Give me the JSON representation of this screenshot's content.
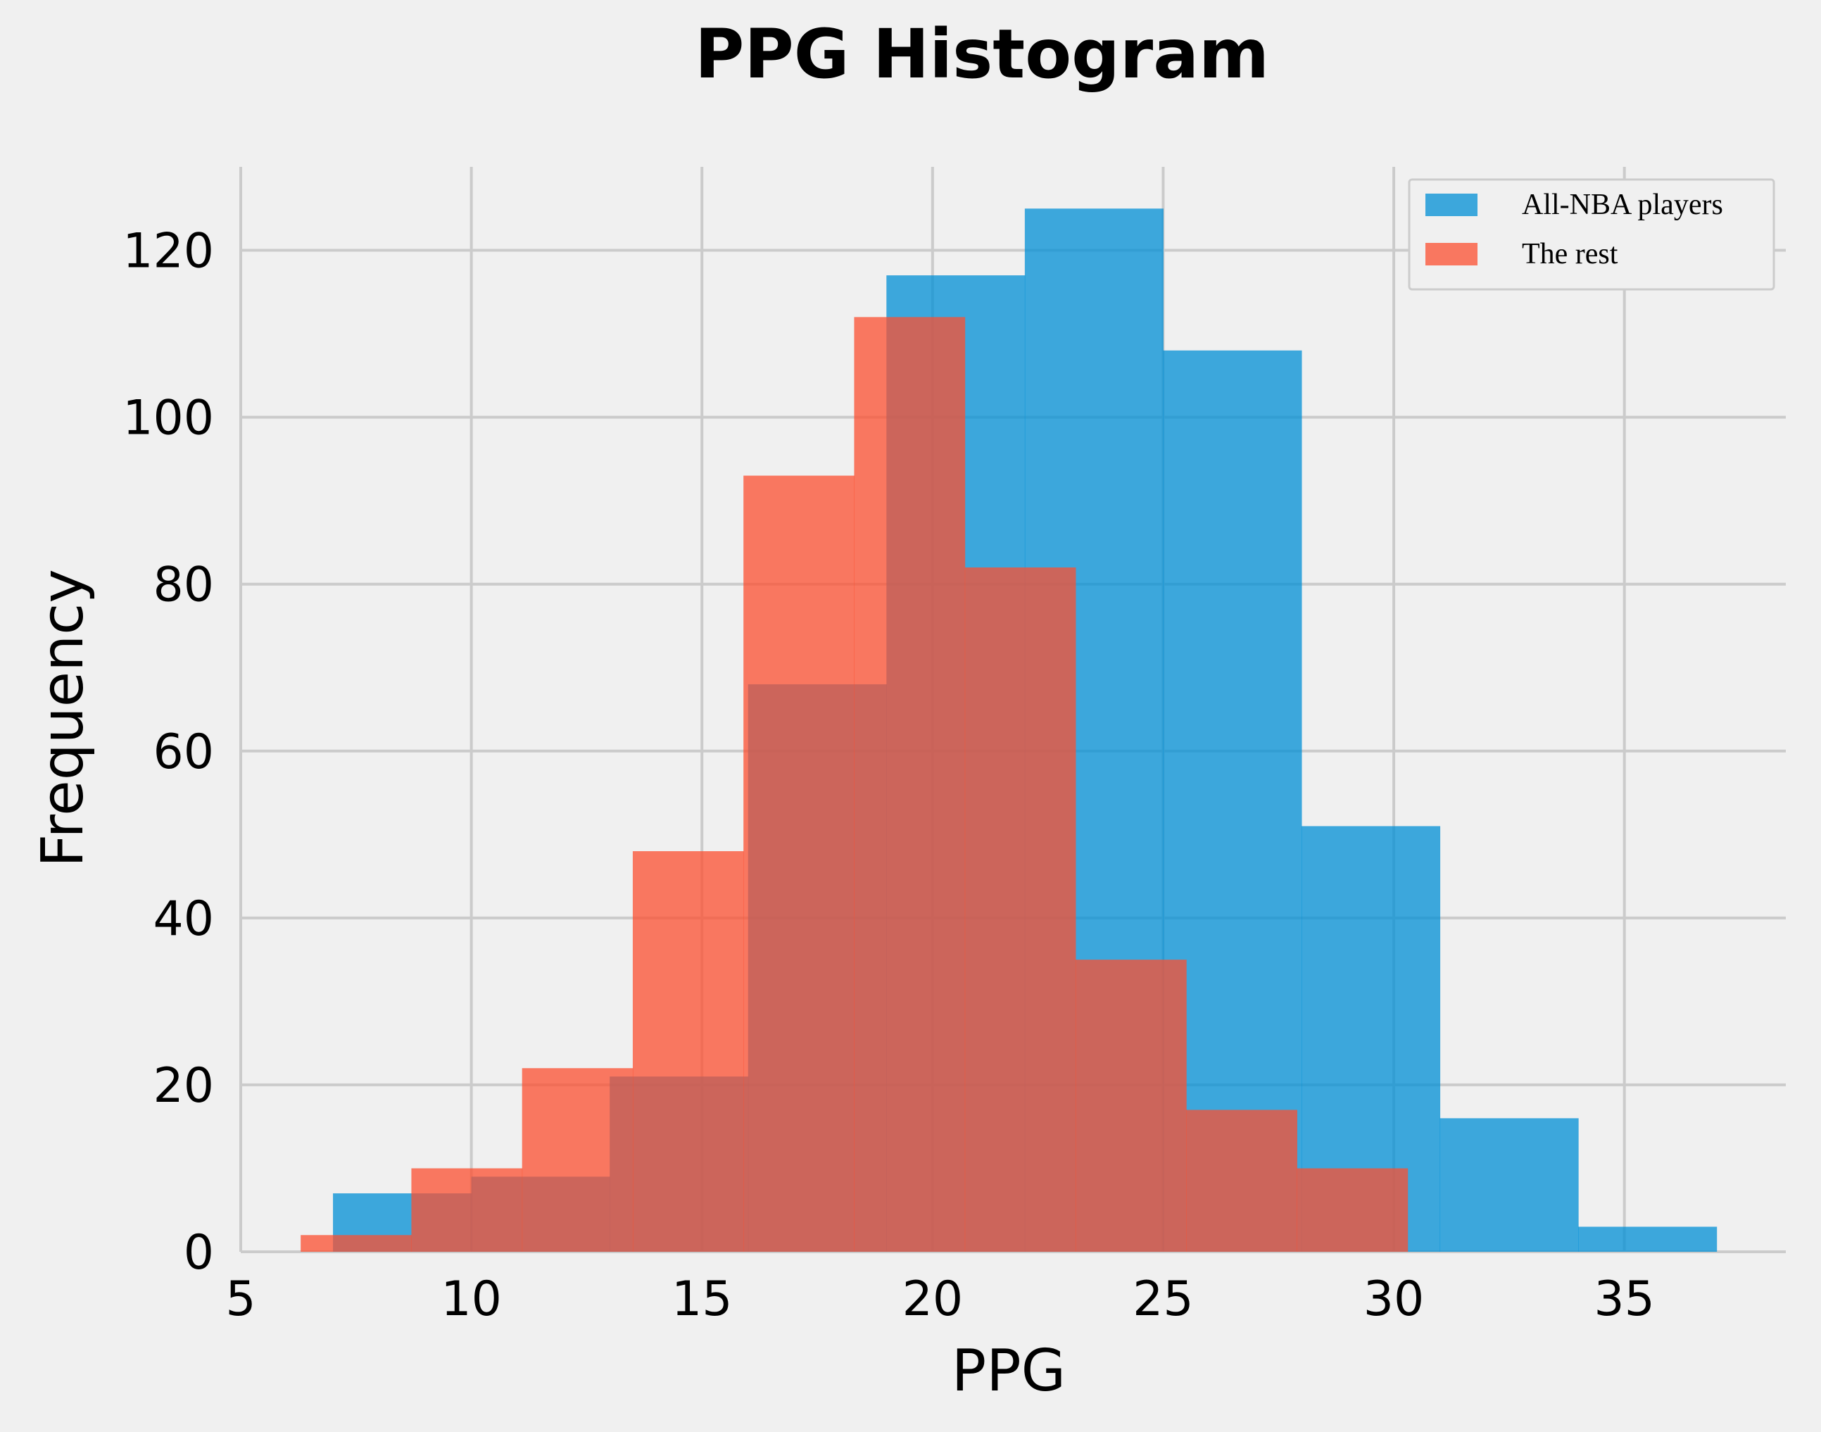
{
  "chart_data": {
    "type": "histogram",
    "title": "PPG Histogram",
    "xlabel": "PPG",
    "ylabel": "Frequency",
    "xlim": [
      5,
      38.5
    ],
    "ylim": [
      0,
      130
    ],
    "xticks": [
      5,
      10,
      15,
      20,
      25,
      30,
      35
    ],
    "yticks": [
      0,
      20,
      40,
      60,
      80,
      100,
      120
    ],
    "grid": true,
    "legend_position": "top-right",
    "series": [
      {
        "name": "All-NBA players",
        "color": "#008fd5",
        "bins": [
          7.0,
          10.0,
          13.0,
          16.0,
          19.0,
          22.0,
          25.0,
          28.0,
          31.0,
          34.0,
          37.0
        ],
        "counts": [
          7,
          9,
          21,
          68,
          117,
          125,
          108,
          51,
          16,
          3
        ]
      },
      {
        "name": "The rest",
        "color": "#fc4f30",
        "bins": [
          6.3,
          8.7,
          11.1,
          13.5,
          15.9,
          18.3,
          20.7,
          23.1,
          25.5,
          27.9,
          30.3
        ],
        "counts": [
          2,
          10,
          22,
          48,
          93,
          112,
          82,
          35,
          17,
          10
        ]
      }
    ]
  }
}
